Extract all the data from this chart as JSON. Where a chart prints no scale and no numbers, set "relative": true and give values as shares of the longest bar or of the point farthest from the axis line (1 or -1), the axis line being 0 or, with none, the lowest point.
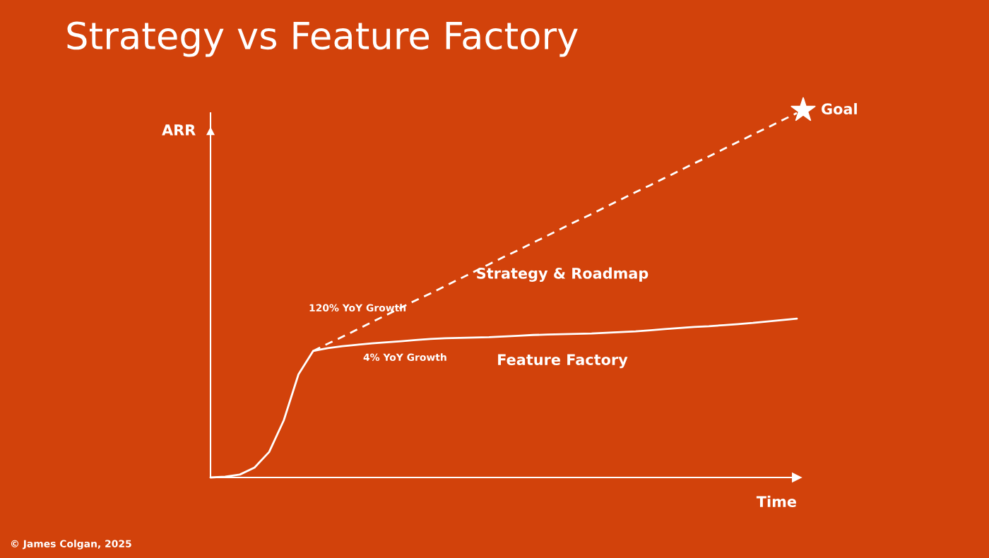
{
  "chart_data": {
    "type": "line",
    "title": "Strategy vs Feature Factory",
    "xlabel": "Time",
    "ylabel": "ARR",
    "relative": true,
    "legend": false,
    "grid": false,
    "categories": [
      null,
      null,
      null,
      null,
      null,
      null,
      null,
      null,
      null,
      null,
      null,
      null,
      null,
      null,
      null,
      null,
      null,
      null,
      null,
      null,
      null,
      null,
      null,
      null,
      null,
      null,
      null,
      null,
      null,
      null,
      null,
      null,
      null,
      null,
      null,
      null,
      null,
      null,
      null,
      null,
      null
    ],
    "series": [
      {
        "name": "Feature Factory",
        "color": "#ffffff",
        "line_style": "solid",
        "values": [
          0,
          0.002,
          0.008,
          0.027,
          0.07,
          0.157,
          0.283,
          0.347,
          0.355,
          0.36,
          0.364,
          0.368,
          0.371,
          0.374,
          0.377,
          0.38,
          0.382,
          0.383,
          0.384,
          0.385,
          0.387,
          0.389,
          0.391,
          0.392,
          0.393,
          0.394,
          0.395,
          0.397,
          0.399,
          0.401,
          0.404,
          0.407,
          0.41,
          0.413,
          0.415,
          0.418,
          0.421,
          0.424,
          0.428,
          0.432,
          0.436
        ]
      },
      {
        "name": "Strategy & Roadmap",
        "color": "#ffffff",
        "line_style": "dashed",
        "values": [
          null,
          null,
          null,
          null,
          null,
          null,
          null,
          0.347,
          0.367,
          0.386,
          0.406,
          0.426,
          0.446,
          0.466,
          0.486,
          0.505,
          0.525,
          0.545,
          0.565,
          0.585,
          0.605,
          0.624,
          0.644,
          0.664,
          0.684,
          0.704,
          0.723,
          0.743,
          0.763,
          0.783,
          0.802,
          0.822,
          0.842,
          0.862,
          0.881,
          0.901,
          0.921,
          0.941,
          0.96,
          0.98,
          1.0
        ]
      }
    ],
    "annotations": [
      "120% YoY Growth",
      "4% YoY Growth",
      "© James Colgan, 2025",
      "Goal"
    ]
  }
}
